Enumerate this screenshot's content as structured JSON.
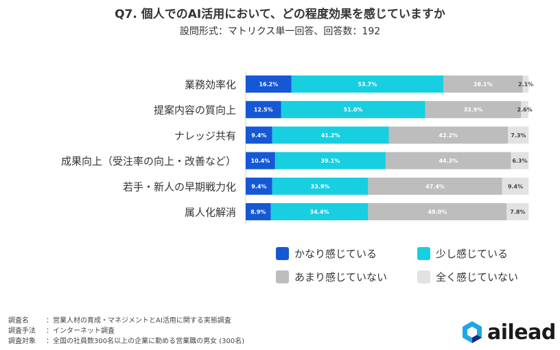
{
  "header": {
    "title": "Q7. 個人でのAI活用において、どの程度効果を感じていますか",
    "subtitle": "設問形式：マトリクス単一回答、回答数：192"
  },
  "colors": {
    "strong": "#1558d6",
    "somewhat": "#17cfe0",
    "not_much": "#bdbdbd",
    "not_at_all": "#e2e2e2",
    "logo_accent": "#1ea7e8",
    "logo_dark": "#0d2d8a"
  },
  "chart_data": {
    "type": "bar",
    "orientation": "horizontal-stacked-100",
    "categories": [
      "業務効率化",
      "提案内容の質向上",
      "ナレッジ共有",
      "成果向上（受注率の向上・改善など）",
      "若手・新人の早期戦力化",
      "属人化解消"
    ],
    "series": [
      {
        "name": "かなり感じている",
        "values": [
          16.2,
          12.5,
          9.4,
          10.4,
          9.4,
          8.9
        ],
        "labels": [
          "16.2%",
          "12.5%",
          "9.4%",
          "10.4%",
          "9.4%",
          "8.9%"
        ]
      },
      {
        "name": "少し感じている",
        "values": [
          53.7,
          51.0,
          41.2,
          39.1,
          33.9,
          34.4
        ],
        "labels": [
          "53.7%",
          "51.0%",
          "41.2%",
          "39.1%",
          "33.9%",
          "34.4%"
        ]
      },
      {
        "name": "あまり感じていない",
        "values": [
          28.1,
          33.9,
          42.2,
          44.3,
          47.4,
          49.0
        ],
        "labels": [
          "28.1%",
          "33.9%",
          "42.2%",
          "44.3%",
          "47.4%",
          "49.0%"
        ]
      },
      {
        "name": "全く感じていない",
        "values": [
          2.1,
          2.6,
          7.3,
          6.3,
          9.4,
          7.8
        ],
        "labels": [
          "2.1%",
          "2.6%",
          "7.3%",
          "6.3%",
          "9.4%",
          "7.8%"
        ]
      }
    ],
    "xlim": [
      0,
      100
    ],
    "legend": [
      "かなり感じている",
      "少し感じている",
      "あまり感じていない",
      "全く感じていない"
    ]
  },
  "footnotes": [
    {
      "label": "調査名",
      "text": "：営業人材の育成・マネジメントとAI活用に関する実態調査"
    },
    {
      "label": "調査手法",
      "text": "：インターネット調査"
    },
    {
      "label": "調査対象",
      "text": "：全国の社員数300名以上の企業に勤める営業職の男女 (300名)"
    }
  ],
  "logo": {
    "text": "ailead"
  }
}
